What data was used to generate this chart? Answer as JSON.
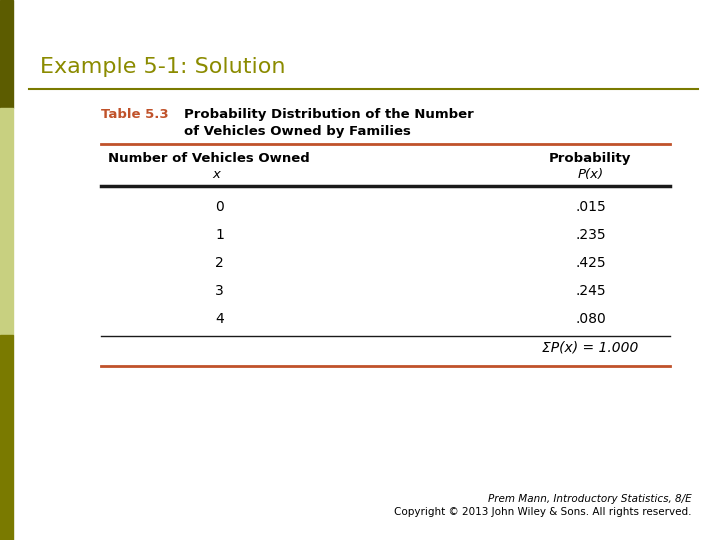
{
  "title": "Example 5-1: Solution",
  "title_color": "#8B8B00",
  "title_fontsize": 16,
  "bg_color": "#FFFFFF",
  "left_bar_top_color": "#5C5C00",
  "left_bar_mid_color": "#C8D080",
  "left_bar_bot_color": "#7A7A00",
  "table_label": "Table 5.3",
  "table_label_color": "#C0522A",
  "table_title_line1": "Probability Distribution of the Number",
  "table_title_line2": "of Vehicles Owned by Families",
  "table_title_color": "#000000",
  "col1_header_line1": "Number of Vehicles Owned",
  "col1_header_line2": "x",
  "col2_header_line1": "Probability",
  "col2_header_line2": "P(x)",
  "x_values": [
    "0",
    "1",
    "2",
    "3",
    "4"
  ],
  "p_values": [
    ".015",
    ".235",
    ".425",
    ".245",
    ".080"
  ],
  "sum_label": "Σ",
  "sum_row": "P(x) = 1.000",
  "footer_line1": "Prem Mann, Introductory Statistics, 8/E",
  "footer_line2": "Copyright © 2013 John Wiley & Sons. All rights reserved.",
  "line_color_red": "#C0522A",
  "line_color_dark": "#1A1A1A",
  "line_color_olive": "#7A7A00"
}
